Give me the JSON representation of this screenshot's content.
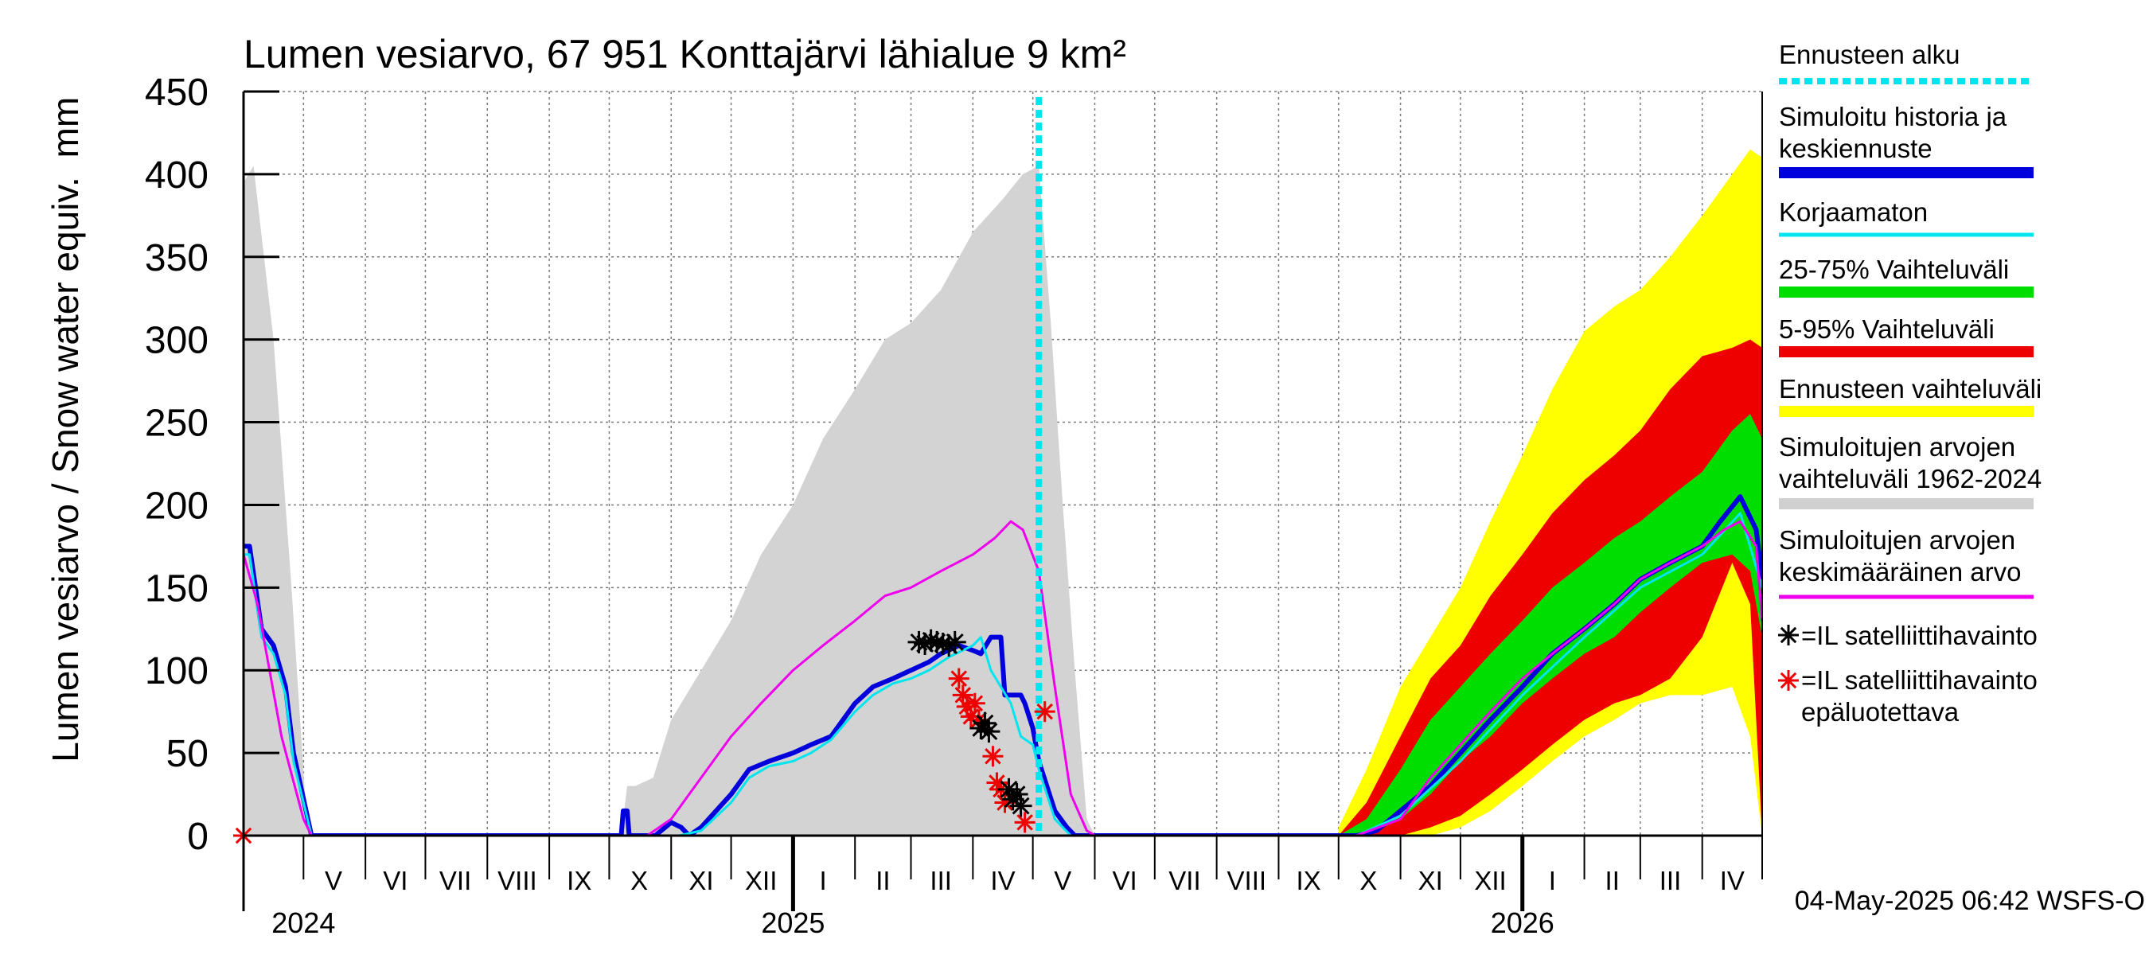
{
  "chart_data": {
    "type": "area",
    "title": "Lumen vesiarvo, 67 951 Konttajärvi lähialue 9 km²",
    "ylabel": "Lumen vesiarvo / Snow water equiv.",
    "yunit": "mm",
    "ylim": [
      0,
      450
    ],
    "yticks": [
      "0",
      "50",
      "100",
      "150",
      "200",
      "250",
      "300",
      "350",
      "400",
      "450"
    ],
    "xlim": [
      "2024-04-01",
      "2026-05-01"
    ],
    "grid": true,
    "legend_position": "right",
    "forecast_start": "2025-05-04",
    "footer": "04-May-2025 06:42 WSFS-O",
    "month_labels": [
      {
        "label": "V",
        "date": "2024-05-16"
      },
      {
        "label": "VI",
        "date": "2024-06-16"
      },
      {
        "label": "VII",
        "date": "2024-07-16"
      },
      {
        "label": "VIII",
        "date": "2024-08-16"
      },
      {
        "label": "IX",
        "date": "2024-09-16"
      },
      {
        "label": "X",
        "date": "2024-10-16"
      },
      {
        "label": "XI",
        "date": "2024-11-16"
      },
      {
        "label": "XII",
        "date": "2024-12-16"
      },
      {
        "label": "I",
        "date": "2025-01-16"
      },
      {
        "label": "II",
        "date": "2025-02-15"
      },
      {
        "label": "III",
        "date": "2025-03-16"
      },
      {
        "label": "IV",
        "date": "2025-04-16"
      },
      {
        "label": "V",
        "date": "2025-05-16"
      },
      {
        "label": "VI",
        "date": "2025-06-16"
      },
      {
        "label": "VII",
        "date": "2025-07-16"
      },
      {
        "label": "VIII",
        "date": "2025-08-16"
      },
      {
        "label": "IX",
        "date": "2025-09-16"
      },
      {
        "label": "X",
        "date": "2025-10-16"
      },
      {
        "label": "XI",
        "date": "2025-11-16"
      },
      {
        "label": "XII",
        "date": "2025-12-16"
      },
      {
        "label": "I",
        "date": "2026-01-16"
      },
      {
        "label": "II",
        "date": "2026-02-15"
      },
      {
        "label": "III",
        "date": "2026-03-16"
      },
      {
        "label": "IV",
        "date": "2026-04-16"
      }
    ],
    "year_labels": [
      {
        "label": "2024",
        "date": "2024-05-01"
      },
      {
        "label": "2025",
        "date": "2025-01-01"
      },
      {
        "label": "2026",
        "date": "2026-01-01"
      }
    ],
    "legend": [
      {
        "label": "Ennusteen alku",
        "color": "#00e5ee",
        "style": "dotted"
      },
      {
        "label": "Simuloitu historia ja\nkeskiennuste",
        "color": "#0000dd",
        "style": "thick"
      },
      {
        "label": "Korjaamaton",
        "color": "#00e5ee",
        "style": "line"
      },
      {
        "label": "25-75% Vaihteluväli",
        "color": "#00dd00",
        "style": "thick"
      },
      {
        "label": "5-95% Vaihteluväli",
        "color": "#ee0000",
        "style": "thick"
      },
      {
        "label": "Ennusteen vaihteluväli",
        "color": "#ffff00",
        "style": "thick"
      },
      {
        "label": "Simuloitujen arvojen\nvaihteluväli 1962-2024",
        "color": "#d0d0d0",
        "style": "thick"
      },
      {
        "label": "Simuloitujen arvojen\nkeskimääräinen arvo",
        "color": "#ee00ee",
        "style": "line"
      },
      {
        "label": "=IL satelliittihavainto",
        "color": "#000000",
        "style": "star"
      },
      {
        "label": "=IL satelliittihavainto\nepäluotettava",
        "color": "#ee0000",
        "style": "star"
      }
    ],
    "series": [
      {
        "name": "Simuloitujen arvojen vaihteluväli 1962-2024",
        "color": "#d3d3d3",
        "kind": "band",
        "x": [
          "2024-04-01",
          "2024-04-06",
          "2024-04-16",
          "2024-04-25",
          "2024-05-02",
          "2024-05-05",
          "2024-10-07",
          "2024-10-10",
          "2024-10-14",
          "2024-10-23",
          "2024-11-01",
          "2024-11-16",
          "2024-12-01",
          "2024-12-16",
          "2025-01-01",
          "2025-01-16",
          "2025-02-01",
          "2025-02-16",
          "2025-03-01",
          "2025-03-16",
          "2025-04-01",
          "2025-04-16",
          "2025-04-26",
          "2025-05-04",
          "2025-05-10",
          "2025-05-16",
          "2025-05-22",
          "2025-05-28",
          "2025-06-01"
        ],
        "high": [
          395,
          405,
          300,
          150,
          20,
          0,
          0,
          30,
          30,
          35,
          70,
          100,
          130,
          170,
          200,
          240,
          270,
          300,
          310,
          330,
          365,
          385,
          400,
          405,
          310,
          200,
          100,
          10,
          0
        ],
        "low": [
          0,
          0,
          0,
          0,
          0,
          0,
          0,
          0,
          0,
          0,
          0,
          0,
          0,
          0,
          0,
          0,
          0,
          0,
          0,
          0,
          0,
          0,
          0,
          0,
          0,
          0,
          0,
          0,
          0
        ]
      },
      {
        "name": "Ennusteen vaihteluväli",
        "color": "#ffff00",
        "kind": "band",
        "x": [
          "2025-10-01",
          "2025-10-15",
          "2025-11-01",
          "2025-11-16",
          "2025-12-01",
          "2025-12-16",
          "2026-01-01",
          "2026-01-16",
          "2026-02-01",
          "2026-02-16",
          "2026-03-01",
          "2026-03-16",
          "2026-04-01",
          "2026-04-16",
          "2026-04-25",
          "2026-05-01"
        ],
        "high": [
          5,
          40,
          90,
          120,
          150,
          190,
          230,
          270,
          305,
          320,
          330,
          350,
          375,
          400,
          415,
          410
        ],
        "low": [
          0,
          0,
          0,
          0,
          5,
          15,
          30,
          45,
          60,
          70,
          80,
          85,
          85,
          90,
          60,
          0
        ]
      },
      {
        "name": "5-95% Vaihteluväli",
        "color": "#ee0000",
        "kind": "band",
        "x": [
          "2025-10-01",
          "2025-10-15",
          "2025-11-01",
          "2025-11-16",
          "2025-12-01",
          "2025-12-16",
          "2026-01-01",
          "2026-01-16",
          "2026-02-01",
          "2026-02-16",
          "2026-03-01",
          "2026-03-16",
          "2026-04-01",
          "2026-04-16",
          "2026-04-25",
          "2026-05-01"
        ],
        "high": [
          0,
          20,
          60,
          95,
          115,
          145,
          170,
          195,
          215,
          230,
          245,
          270,
          290,
          295,
          300,
          295
        ],
        "low": [
          0,
          0,
          0,
          5,
          12,
          25,
          40,
          55,
          70,
          80,
          85,
          95,
          120,
          165,
          140,
          0
        ]
      },
      {
        "name": "25-75% Vaihteluväli",
        "color": "#00dd00",
        "kind": "band",
        "x": [
          "2025-10-01",
          "2025-10-15",
          "2025-11-01",
          "2025-11-16",
          "2025-12-01",
          "2025-12-16",
          "2026-01-01",
          "2026-01-16",
          "2026-02-01",
          "2026-02-16",
          "2026-03-01",
          "2026-03-16",
          "2026-04-01",
          "2026-04-16",
          "2026-04-25",
          "2026-05-01"
        ],
        "high": [
          0,
          10,
          40,
          70,
          90,
          110,
          130,
          150,
          165,
          180,
          190,
          205,
          220,
          245,
          255,
          240
        ],
        "low": [
          0,
          0,
          10,
          25,
          45,
          60,
          80,
          95,
          110,
          120,
          135,
          150,
          165,
          170,
          160,
          120
        ]
      },
      {
        "name": "Simuloitu historia ja keskiennuste",
        "color": "#0000dd",
        "kind": "line",
        "width": 6,
        "x": [
          "2024-04-01",
          "2024-04-04",
          "2024-04-10",
          "2024-04-16",
          "2024-04-22",
          "2024-04-26",
          "2024-05-05",
          "2024-10-07",
          "2024-10-08",
          "2024-10-10",
          "2024-10-11",
          "2024-10-24",
          "2024-11-01",
          "2024-11-06",
          "2024-11-10",
          "2024-11-16",
          "2024-12-01",
          "2024-12-10",
          "2024-12-20",
          "2025-01-01",
          "2025-01-10",
          "2025-01-20",
          "2025-02-01",
          "2025-02-10",
          "2025-02-20",
          "2025-03-01",
          "2025-03-10",
          "2025-03-16",
          "2025-03-25",
          "2025-04-01",
          "2025-04-05",
          "2025-04-10",
          "2025-04-15",
          "2025-04-17",
          "2025-04-25",
          "2025-04-27",
          "2025-05-01",
          "2025-05-04",
          "2025-05-12",
          "2025-05-18",
          "2025-05-22",
          "2025-10-10",
          "2025-10-20",
          "2025-11-01",
          "2025-11-16",
          "2025-12-01",
          "2025-12-16",
          "2026-01-01",
          "2026-01-16",
          "2026-02-01",
          "2026-02-16",
          "2026-03-01",
          "2026-03-16",
          "2026-04-01",
          "2026-04-10",
          "2026-04-20",
          "2026-04-28",
          "2026-05-01"
        ],
        "y": [
          175,
          175,
          125,
          115,
          90,
          50,
          0,
          0,
          15,
          15,
          0,
          0,
          8,
          5,
          0,
          5,
          25,
          40,
          45,
          50,
          55,
          60,
          80,
          90,
          95,
          100,
          105,
          110,
          115,
          112,
          110,
          120,
          120,
          85,
          85,
          80,
          65,
          45,
          15,
          5,
          0,
          0,
          3,
          15,
          30,
          50,
          70,
          90,
          110,
          125,
          140,
          155,
          165,
          175,
          190,
          205,
          185,
          155
        ]
      },
      {
        "name": "Korjaamaton",
        "color": "#00e5ee",
        "kind": "line",
        "width": 3,
        "x": [
          "2024-04-01",
          "2024-04-04",
          "2024-04-10",
          "2024-04-16",
          "2024-04-22",
          "2024-04-26",
          "2024-05-05",
          "2024-10-12",
          "2024-11-05",
          "2024-11-16",
          "2024-12-01",
          "2024-12-10",
          "2024-12-20",
          "2025-01-01",
          "2025-01-10",
          "2025-01-20",
          "2025-02-01",
          "2025-02-10",
          "2025-02-20",
          "2025-03-01",
          "2025-03-10",
          "2025-03-20",
          "2025-04-01",
          "2025-04-05",
          "2025-04-10",
          "2025-04-20",
          "2025-04-25",
          "2025-05-01",
          "2025-05-04",
          "2025-05-12",
          "2025-05-20",
          "2025-10-10",
          "2025-11-01",
          "2025-12-01",
          "2026-01-01",
          "2026-02-01",
          "2026-03-01",
          "2026-04-01",
          "2026-04-20",
          "2026-05-01"
        ],
        "y": [
          170,
          170,
          120,
          110,
          85,
          45,
          0,
          0,
          0,
          3,
          20,
          35,
          42,
          45,
          50,
          58,
          75,
          85,
          92,
          95,
          100,
          108,
          115,
          120,
          100,
          80,
          60,
          55,
          40,
          10,
          0,
          0,
          12,
          45,
          85,
          120,
          150,
          170,
          195,
          150
        ]
      },
      {
        "name": "Simuloitujen arvojen keskimääräinen arvo",
        "color": "#ee00ee",
        "kind": "line",
        "width": 3,
        "x": [
          "2024-04-01",
          "2024-04-08",
          "2024-04-20",
          "2024-05-01",
          "2024-05-05",
          "2024-10-20",
          "2024-11-01",
          "2024-11-16",
          "2024-12-01",
          "2024-12-16",
          "2025-01-01",
          "2025-01-16",
          "2025-02-01",
          "2025-02-16",
          "2025-03-01",
          "2025-03-16",
          "2025-04-01",
          "2025-04-12",
          "2025-04-20",
          "2025-04-26",
          "2025-05-04",
          "2025-05-12",
          "2025-05-20",
          "2025-05-28",
          "2025-06-01",
          "2025-10-10",
          "2025-11-01",
          "2025-11-16",
          "2025-12-01",
          "2025-12-16",
          "2026-01-01",
          "2026-01-16",
          "2026-02-01",
          "2026-02-16",
          "2026-03-01",
          "2026-03-16",
          "2026-04-01",
          "2026-04-12",
          "2026-04-20",
          "2026-04-28",
          "2026-05-01"
        ],
        "y": [
          170,
          140,
          60,
          10,
          0,
          0,
          10,
          35,
          60,
          80,
          100,
          115,
          130,
          145,
          150,
          160,
          170,
          180,
          190,
          185,
          160,
          90,
          25,
          3,
          0,
          0,
          10,
          35,
          55,
          75,
          95,
          110,
          125,
          140,
          155,
          165,
          175,
          185,
          190,
          175,
          130
        ]
      }
    ],
    "observations": {
      "reliable": {
        "label": "=IL satelliittihavainto",
        "color": "#000000",
        "x": [
          "2025-03-05",
          "2025-03-08",
          "2025-03-11",
          "2025-03-14",
          "2025-03-17",
          "2025-03-20",
          "2025-03-23",
          "2025-04-05",
          "2025-04-07",
          "2025-04-09",
          "2025-04-19",
          "2025-04-21",
          "2025-04-23",
          "2025-04-25"
        ],
        "y": [
          117,
          116,
          118,
          117,
          116,
          115,
          117,
          65,
          68,
          63,
          28,
          22,
          25,
          18
        ]
      },
      "unreliable": {
        "label": "=IL satelliittihavainto epäluotettava",
        "color": "#ee0000",
        "x": [
          "2024-04-01",
          "2025-03-25",
          "2025-03-27",
          "2025-03-29",
          "2025-03-31",
          "2025-04-02",
          "2025-04-04",
          "2025-04-11",
          "2025-04-13",
          "2025-04-15",
          "2025-04-17",
          "2025-04-27",
          "2025-05-07"
        ],
        "y": [
          0,
          95,
          85,
          78,
          72,
          80,
          70,
          48,
          32,
          28,
          20,
          8,
          75
        ]
      }
    }
  }
}
